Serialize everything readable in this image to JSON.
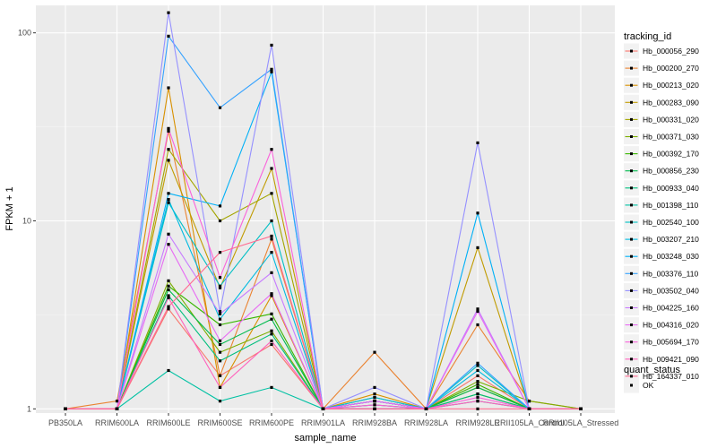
{
  "chart_data": {
    "type": "line",
    "xlabel": "sample_name",
    "ylabel": "FPKM + 1",
    "y_scale": "log10",
    "ylim": [
      0.95,
      140
    ],
    "y_ticks": [
      1,
      10,
      100
    ],
    "y_tick_labels": [
      "1",
      "10",
      "100"
    ],
    "categories": [
      "PB350LA",
      "RRIM600LA",
      "RRIM600LE",
      "RRIM600SE",
      "RRIM600PE",
      "RRIM901LA",
      "RRIM928BA",
      "RRIM928LA",
      "RRIM928LE",
      "RRII105LA_Control",
      "RRII105LA_Stressed"
    ],
    "legend_title": "tracking_id",
    "legend_position": "right",
    "shape_legend_title": "quant_status",
    "shape_legend_items": [
      "OK"
    ],
    "grid": true,
    "series": [
      {
        "name": "Hb_000056_290",
        "color": "#F8766D",
        "values": [
          1.0,
          1.0,
          3.4,
          1.5,
          2.2,
          1.0,
          1.0,
          1.0,
          1.5,
          1.0,
          1.0
        ]
      },
      {
        "name": "Hb_000200_270",
        "color": "#EA8331",
        "values": [
          1.0,
          1.1,
          30.0,
          1.5,
          8.0,
          1.0,
          2.0,
          1.0,
          2.8,
          1.1,
          1.0
        ]
      },
      {
        "name": "Hb_000213_020",
        "color": "#D89000",
        "values": [
          1.0,
          1.0,
          51.0,
          1.3,
          4.0,
          1.0,
          1.2,
          1.0,
          1.3,
          1.0,
          1.0
        ]
      },
      {
        "name": "Hb_000283_090",
        "color": "#C09B00",
        "values": [
          1.0,
          1.0,
          21.0,
          4.4,
          19.0,
          1.0,
          1.1,
          1.0,
          7.2,
          1.0,
          1.0
        ]
      },
      {
        "name": "Hb_000331_020",
        "color": "#A3A500",
        "values": [
          1.0,
          1.0,
          24.0,
          10.0,
          14.0,
          1.0,
          1.15,
          1.0,
          1.2,
          1.0,
          1.0
        ]
      },
      {
        "name": "Hb_000371_030",
        "color": "#7CAE00",
        "values": [
          1.0,
          1.0,
          4.8,
          2.0,
          2.6,
          1.0,
          1.1,
          1.0,
          1.4,
          1.1,
          1.0
        ]
      },
      {
        "name": "Hb_000392_170",
        "color": "#39B600",
        "values": [
          1.0,
          1.0,
          4.5,
          2.8,
          3.2,
          1.0,
          1.1,
          1.0,
          1.35,
          1.0,
          1.0
        ]
      },
      {
        "name": "Hb_000856_230",
        "color": "#00BB4E",
        "values": [
          1.0,
          1.0,
          4.3,
          2.2,
          3.0,
          1.0,
          1.05,
          1.0,
          1.3,
          1.0,
          1.0
        ]
      },
      {
        "name": "Hb_000933_040",
        "color": "#00BF7D",
        "values": [
          1.0,
          1.0,
          4.0,
          1.8,
          2.5,
          1.0,
          1.0,
          1.0,
          1.2,
          1.0,
          1.0
        ]
      },
      {
        "name": "Hb_001398_110",
        "color": "#00C1A3",
        "values": [
          1.0,
          1.0,
          1.6,
          1.1,
          1.3,
          1.0,
          1.0,
          1.0,
          1.1,
          1.0,
          1.0
        ]
      },
      {
        "name": "Hb_002540_100",
        "color": "#00BFC4",
        "values": [
          1.0,
          1.0,
          12.5,
          4.5,
          10.0,
          1.0,
          1.1,
          1.0,
          1.7,
          1.0,
          1.0
        ]
      },
      {
        "name": "Hb_003207_210",
        "color": "#00BAE0",
        "values": [
          1.0,
          1.0,
          13.0,
          3.0,
          6.8,
          1.0,
          1.15,
          1.0,
          1.6,
          1.0,
          1.0
        ]
      },
      {
        "name": "Hb_003248_030",
        "color": "#00B0F6",
        "values": [
          1.0,
          1.0,
          14.0,
          12.0,
          62.0,
          1.0,
          1.1,
          1.0,
          11.0,
          1.0,
          1.0
        ]
      },
      {
        "name": "Hb_003376_110",
        "color": "#35A2FF",
        "values": [
          1.0,
          1.0,
          96.0,
          40.0,
          64.0,
          1.0,
          1.0,
          1.0,
          1.75,
          1.0,
          1.0
        ]
      },
      {
        "name": "Hb_003502_040",
        "color": "#9590FF",
        "values": [
          1.0,
          1.0,
          128.0,
          3.3,
          86.0,
          1.0,
          1.3,
          1.0,
          26.0,
          1.0,
          1.0
        ]
      },
      {
        "name": "Hb_004225_160",
        "color": "#C77CFF",
        "values": [
          1.0,
          1.0,
          8.5,
          3.2,
          5.3,
          1.0,
          1.1,
          1.0,
          3.4,
          1.0,
          1.0
        ]
      },
      {
        "name": "Hb_004316_020",
        "color": "#E76BF3",
        "values": [
          1.0,
          1.0,
          7.5,
          2.3,
          4.1,
          1.0,
          1.1,
          1.0,
          3.3,
          1.0,
          1.0
        ]
      },
      {
        "name": "Hb_005694_170",
        "color": "#FA62DB",
        "values": [
          1.0,
          1.0,
          31.0,
          5.0,
          24.0,
          1.0,
          1.05,
          1.0,
          1.15,
          1.0,
          1.0
        ]
      },
      {
        "name": "Hb_009421_090",
        "color": "#FF62BC",
        "values": [
          1.0,
          1.0,
          3.9,
          1.3,
          2.3,
          1.0,
          1.0,
          1.0,
          1.1,
          1.0,
          1.0
        ]
      },
      {
        "name": "Hb_164337_010",
        "color": "#FF6C91",
        "values": [
          1.0,
          1.0,
          3.5,
          6.8,
          8.3,
          1.0,
          1.0,
          1.0,
          1.0,
          1.0,
          1.0
        ]
      }
    ]
  }
}
